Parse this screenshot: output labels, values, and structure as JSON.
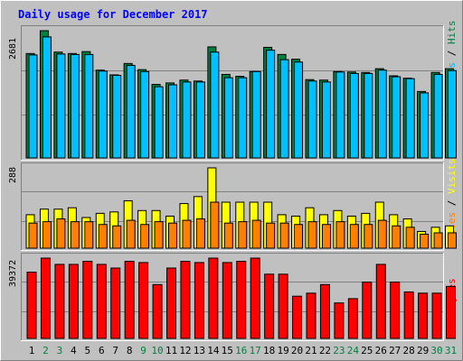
{
  "chart_data": {
    "type": "bar",
    "title": "Daily usage for December 2017",
    "categories": [
      "1",
      "2",
      "3",
      "4",
      "5",
      "6",
      "7",
      "8",
      "9",
      "10",
      "11",
      "12",
      "13",
      "14",
      "15",
      "16",
      "17",
      "18",
      "19",
      "20",
      "21",
      "22",
      "23",
      "24",
      "25",
      "26",
      "27",
      "28",
      "29",
      "30",
      "31"
    ],
    "weekend_days": [
      "2",
      "3",
      "9",
      "10",
      "16",
      "17",
      "23",
      "24",
      "30",
      "31"
    ],
    "colors": {
      "background": "#c0c0c0",
      "panel": "#c0c0c0",
      "hits": "#008040",
      "files": "#00c0ff",
      "pages": "#00c0ff",
      "visits": "#ffff00",
      "sites": "#ff8000",
      "kbytes": "#ff0000",
      "title": "#0000ff",
      "weekend_label": "#008040",
      "weekday_label": "#000000"
    },
    "panels": [
      {
        "id": "hits_files_pages",
        "ymax_label": "2681",
        "ymax": 2681,
        "legend": [
          "Pages",
          "/",
          "Files",
          "/",
          "Hits"
        ],
        "legend_colors": [
          "#00c0ff",
          "#000000",
          "#00c0ff",
          "#000000",
          "#008040"
        ],
        "series": [
          {
            "name": "Hits",
            "values": [
              2200,
              2681,
              2230,
              2200,
              2240,
              1850,
              1750,
              1990,
              1860,
              1550,
              1580,
              1640,
              1620,
              2340,
              1760,
              1720,
              1820,
              2330,
              2180,
              2080,
              1650,
              1640,
              1820,
              1810,
              1800,
              1880,
              1730,
              1680,
              1400,
              1800,
              1880
            ]
          },
          {
            "name": "Files",
            "values": [
              2170,
              2550,
              2190,
              2180,
              2180,
              1830,
              1740,
              1950,
              1820,
              1500,
              1540,
              1600,
              1600,
              2230,
              1690,
              1690,
              1820,
              2270,
              2070,
              2020,
              1620,
              1600,
              1810,
              1780,
              1780,
              1850,
              1710,
              1670,
              1370,
              1760,
              1840
            ]
          }
        ]
      },
      {
        "id": "visits_sites",
        "ymax_label": "288",
        "ymax": 288,
        "legend": [
          "Sites",
          "/",
          "Visits"
        ],
        "legend_colors": [
          "#ff8000",
          "#000000",
          "#ffff00"
        ],
        "series": [
          {
            "name": "Visits",
            "values": [
              120,
              140,
              140,
              145,
              110,
              125,
              130,
              170,
              135,
              135,
              115,
              160,
              185,
              288,
              165,
              165,
              165,
              165,
              120,
              115,
              145,
              120,
              135,
              115,
              125,
              165,
              120,
              105,
              60,
              75,
              80
            ]
          },
          {
            "name": "Sites",
            "values": [
              90,
              95,
              105,
              95,
              95,
              85,
              80,
              100,
              85,
              95,
              90,
              100,
              105,
              165,
              90,
              95,
              100,
              90,
              90,
              85,
              95,
              85,
              95,
              85,
              85,
              100,
              80,
              75,
              50,
              55,
              55
            ]
          }
        ]
      },
      {
        "id": "kbytes",
        "ymax_label": "39372",
        "ymax": 39372,
        "legend": [
          "KBytes"
        ],
        "legend_colors": [
          "#ff0000"
        ],
        "series": [
          {
            "name": "KBytes",
            "values": [
              32500,
              39372,
              36300,
              36300,
              37800,
              36300,
              34500,
              37800,
              37200,
              26400,
              34500,
              37800,
              37200,
              39372,
              37200,
              37800,
              39372,
              31500,
              31500,
              20700,
              22200,
              26400,
              17400,
              19500,
              27600,
              36300,
              27600,
              22800,
              22200,
              22200,
              25500
            ]
          }
        ]
      }
    ]
  }
}
